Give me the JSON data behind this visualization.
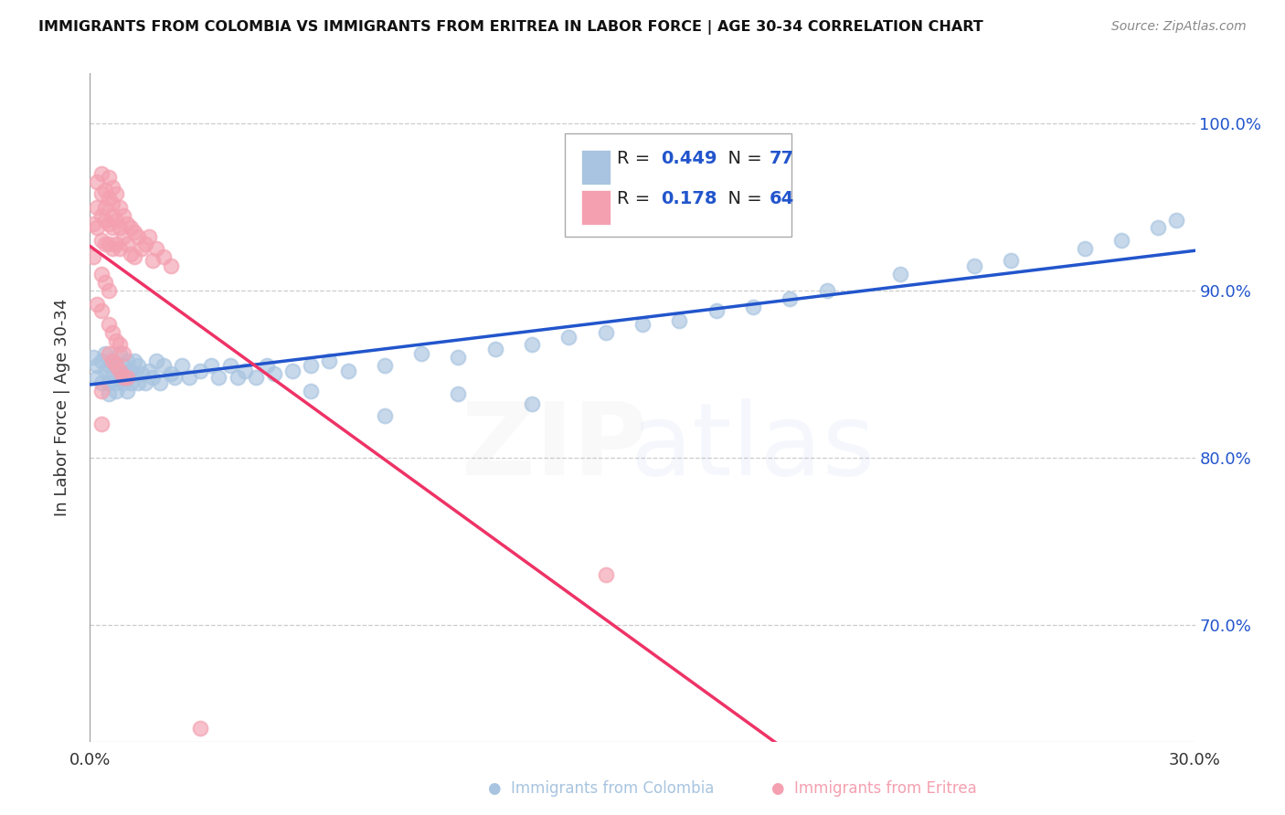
{
  "title": "IMMIGRANTS FROM COLOMBIA VS IMMIGRANTS FROM ERITREA IN LABOR FORCE | AGE 30-34 CORRELATION CHART",
  "source": "Source: ZipAtlas.com",
  "ylabel": "In Labor Force | Age 30-34",
  "xlim": [
    0.0,
    0.3
  ],
  "ylim": [
    0.63,
    1.03
  ],
  "yticks": [
    0.7,
    0.8,
    0.9,
    1.0
  ],
  "ytick_labels": [
    "70.0%",
    "80.0%",
    "90.0%",
    "100.0%"
  ],
  "xticks": [
    0.0,
    0.3
  ],
  "xtick_labels": [
    "0.0%",
    "30.0%"
  ],
  "colombia_R": 0.449,
  "colombia_N": 77,
  "eritrea_R": 0.178,
  "eritrea_N": 64,
  "colombia_color": "#a8c4e0",
  "eritrea_color": "#f4a0b0",
  "colombia_line_color": "#2255cc",
  "eritrea_line_color": "#ee3366",
  "eritrea_dash_color": "#ffbbcc",
  "colombia_x": [
    0.001,
    0.002,
    0.002,
    0.003,
    0.003,
    0.004,
    0.004,
    0.005,
    0.005,
    0.005,
    0.006,
    0.006,
    0.007,
    0.007,
    0.007,
    0.008,
    0.008,
    0.008,
    0.009,
    0.009,
    0.01,
    0.01,
    0.01,
    0.011,
    0.011,
    0.012,
    0.012,
    0.013,
    0.013,
    0.014,
    0.015,
    0.016,
    0.017,
    0.018,
    0.019,
    0.02,
    0.022,
    0.023,
    0.025,
    0.027,
    0.03,
    0.033,
    0.035,
    0.038,
    0.04,
    0.042,
    0.045,
    0.048,
    0.05,
    0.055,
    0.06,
    0.065,
    0.07,
    0.08,
    0.09,
    0.1,
    0.11,
    0.12,
    0.13,
    0.14,
    0.15,
    0.16,
    0.17,
    0.18,
    0.19,
    0.2,
    0.22,
    0.24,
    0.25,
    0.27,
    0.28,
    0.29,
    0.295,
    0.06,
    0.08,
    0.1,
    0.12
  ],
  "colombia_y": [
    0.86,
    0.855,
    0.848,
    0.858,
    0.845,
    0.852,
    0.862,
    0.855,
    0.845,
    0.838,
    0.85,
    0.858,
    0.845,
    0.855,
    0.84,
    0.852,
    0.862,
    0.848,
    0.855,
    0.845,
    0.858,
    0.848,
    0.84,
    0.852,
    0.845,
    0.85,
    0.858,
    0.845,
    0.855,
    0.85,
    0.845,
    0.852,
    0.848,
    0.858,
    0.845,
    0.855,
    0.85,
    0.848,
    0.855,
    0.848,
    0.852,
    0.855,
    0.848,
    0.855,
    0.848,
    0.852,
    0.848,
    0.855,
    0.85,
    0.852,
    0.855,
    0.858,
    0.852,
    0.855,
    0.862,
    0.86,
    0.865,
    0.868,
    0.872,
    0.875,
    0.88,
    0.882,
    0.888,
    0.89,
    0.895,
    0.9,
    0.91,
    0.915,
    0.918,
    0.925,
    0.93,
    0.938,
    0.942,
    0.84,
    0.825,
    0.838,
    0.832
  ],
  "eritrea_x": [
    0.001,
    0.001,
    0.002,
    0.002,
    0.002,
    0.003,
    0.003,
    0.003,
    0.003,
    0.004,
    0.004,
    0.004,
    0.004,
    0.005,
    0.005,
    0.005,
    0.005,
    0.006,
    0.006,
    0.006,
    0.006,
    0.006,
    0.007,
    0.007,
    0.007,
    0.008,
    0.008,
    0.008,
    0.009,
    0.009,
    0.01,
    0.01,
    0.011,
    0.011,
    0.012,
    0.012,
    0.013,
    0.014,
    0.015,
    0.016,
    0.017,
    0.018,
    0.02,
    0.022,
    0.005,
    0.006,
    0.007,
    0.008,
    0.009,
    0.003,
    0.004,
    0.005,
    0.002,
    0.003,
    0.006,
    0.008,
    0.01,
    0.005,
    0.007,
    0.009,
    0.003,
    0.003,
    0.14,
    0.03
  ],
  "eritrea_y": [
    0.92,
    0.94,
    0.95,
    0.965,
    0.938,
    0.958,
    0.945,
    0.93,
    0.97,
    0.96,
    0.942,
    0.928,
    0.95,
    0.955,
    0.94,
    0.928,
    0.968,
    0.952,
    0.938,
    0.925,
    0.962,
    0.945,
    0.958,
    0.942,
    0.928,
    0.95,
    0.938,
    0.925,
    0.945,
    0.932,
    0.94,
    0.928,
    0.938,
    0.922,
    0.935,
    0.92,
    0.932,
    0.925,
    0.928,
    0.932,
    0.918,
    0.925,
    0.92,
    0.915,
    0.88,
    0.875,
    0.87,
    0.868,
    0.862,
    0.91,
    0.905,
    0.9,
    0.892,
    0.888,
    0.858,
    0.852,
    0.848,
    0.862,
    0.855,
    0.848,
    0.84,
    0.82,
    0.73,
    0.638
  ]
}
